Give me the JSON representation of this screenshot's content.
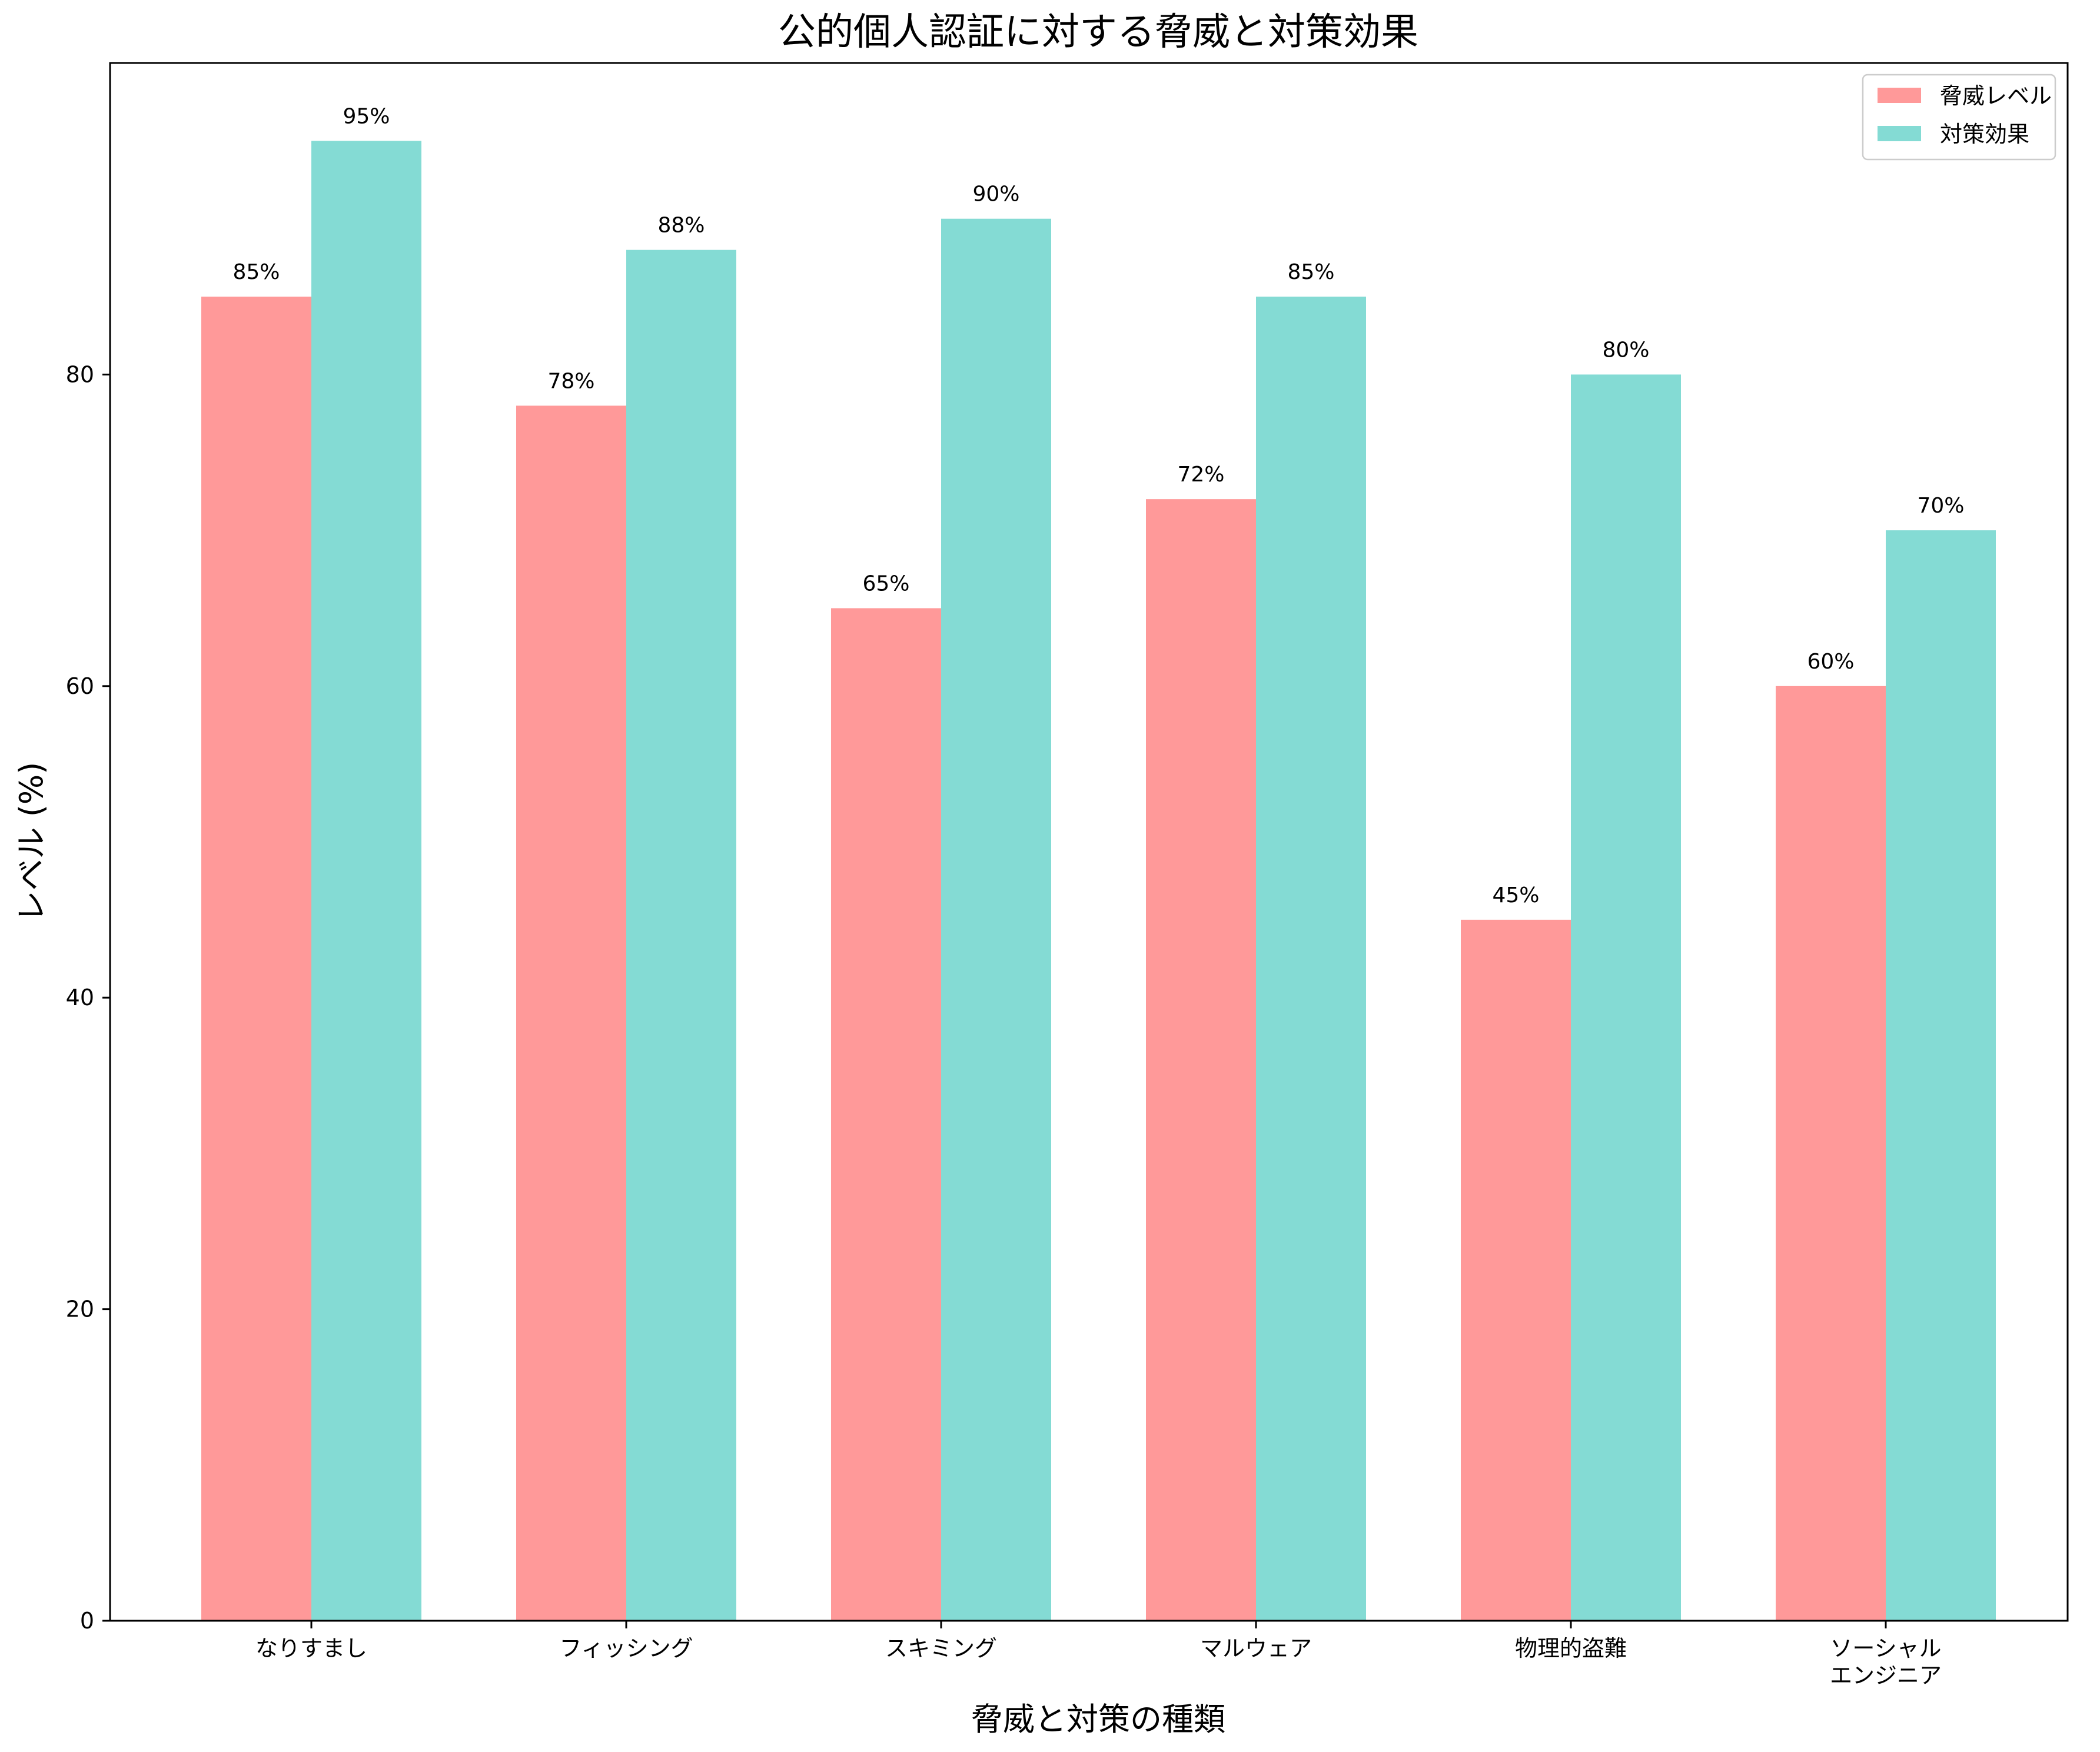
{
  "chart_data": {
    "type": "bar",
    "title": "公的個人認証に対する脅威と対策効果",
    "xlabel": "脅威と対策の種類",
    "ylabel": "レベル (%)",
    "ylim": [
      0,
      100
    ],
    "yticks": [
      "0",
      "20",
      "40",
      "60",
      "80"
    ],
    "categories": [
      [
        "なりすまし"
      ],
      [
        "フィッシング"
      ],
      [
        "スキミング"
      ],
      [
        "マルウェア"
      ],
      [
        "物理的盗難"
      ],
      [
        "ソーシャル",
        "エンジニア"
      ]
    ],
    "series": [
      {
        "name": "脅威レベル",
        "color": "#ff9999",
        "values": [
          85,
          78,
          65,
          72,
          45,
          60
        ],
        "labels": [
          "85%",
          "78%",
          "65%",
          "72%",
          "45%",
          "60%"
        ]
      },
      {
        "name": "対策効果",
        "color": "#84dbd4",
        "values": [
          95,
          88,
          90,
          85,
          80,
          70
        ],
        "labels": [
          "95%",
          "88%",
          "90%",
          "85%",
          "80%",
          "70%"
        ]
      }
    ],
    "legend_position": "top-right",
    "grid": false
  }
}
